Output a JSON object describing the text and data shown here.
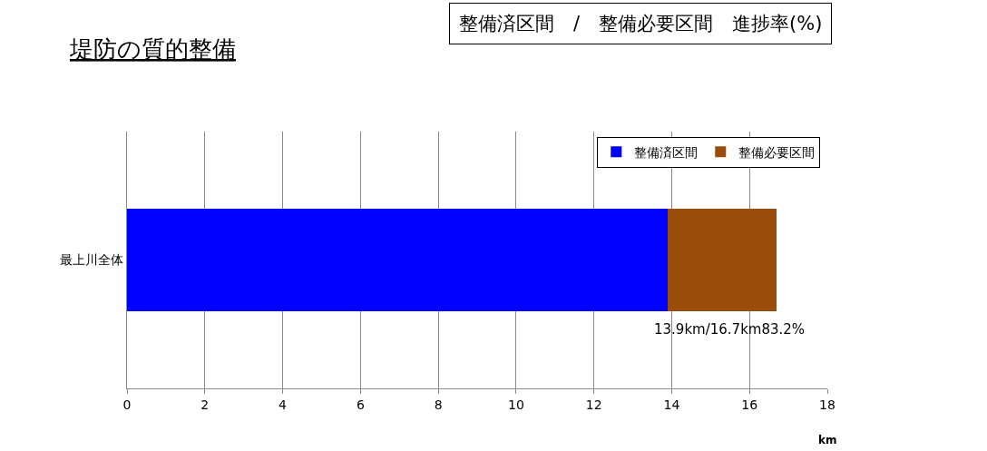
{
  "chart_data": {
    "type": "bar",
    "title": "堤防の質的整備",
    "orientation": "horizontal",
    "stacked": true,
    "categories": [
      "最上川全体"
    ],
    "series": [
      {
        "name": "整備済区間",
        "color": "#0000ff",
        "values": [
          13.9
        ]
      },
      {
        "name": "整備必要区間",
        "color": "#994c0c",
        "values": [
          2.8
        ]
      }
    ],
    "xlim": [
      0,
      18
    ],
    "xticks": [
      0,
      2,
      4,
      6,
      8,
      10,
      12,
      14,
      16,
      18
    ],
    "xlabel": "km",
    "grid": "x",
    "legend": "top right",
    "annotations": [
      "13.9km/16.7km83.2%",
      "整備済区間　/　整備必要区間　進捗率(%)"
    ]
  }
}
